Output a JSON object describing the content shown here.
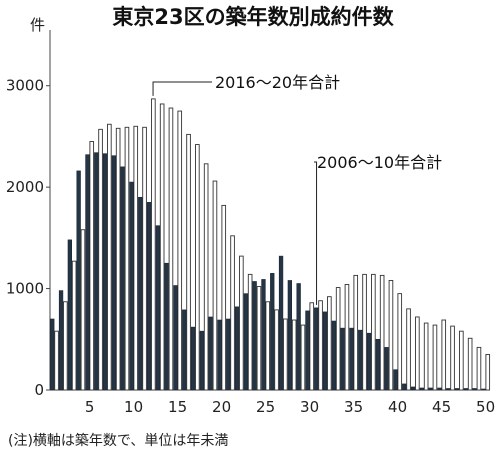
{
  "chart_data": {
    "type": "bar",
    "title": "東京23区の築年数別成約件数",
    "unit": "件",
    "note": "(注)横軸は築年数で、単位は年未満",
    "ylim": [
      0,
      3500
    ],
    "yticks": [
      0,
      1000,
      2000,
      3000
    ],
    "xticks": [
      5,
      10,
      15,
      20,
      25,
      30,
      35,
      40,
      45,
      50
    ],
    "categories": [
      1,
      2,
      3,
      4,
      5,
      6,
      7,
      8,
      9,
      10,
      11,
      12,
      13,
      14,
      15,
      16,
      17,
      18,
      19,
      20,
      21,
      22,
      23,
      24,
      25,
      26,
      27,
      28,
      29,
      30,
      31,
      32,
      33,
      34,
      35,
      36,
      37,
      38,
      39,
      40,
      41,
      42,
      43,
      44,
      45,
      46,
      47,
      48,
      49,
      50
    ],
    "grid": false,
    "legend": "annotations",
    "series": [
      {
        "name": "2006～10年合計",
        "color": "#253545",
        "values": [
          700,
          980,
          1480,
          2160,
          2320,
          2340,
          2330,
          2310,
          2200,
          2050,
          1900,
          1850,
          1620,
          1250,
          1030,
          790,
          620,
          580,
          720,
          690,
          700,
          820,
          950,
          1070,
          1090,
          1150,
          1320,
          1080,
          1050,
          780,
          810,
          770,
          680,
          610,
          610,
          590,
          560,
          500,
          420,
          200,
          60,
          30,
          20,
          20,
          20,
          15,
          15,
          15,
          15,
          10
        ]
      },
      {
        "name": "2016～20年合計",
        "color": "#ffffff",
        "values": [
          580,
          870,
          1270,
          1580,
          2450,
          2570,
          2620,
          2580,
          2590,
          2600,
          2590,
          2870,
          2820,
          2780,
          2750,
          2520,
          2420,
          2230,
          2060,
          1820,
          1520,
          1320,
          1140,
          1020,
          870,
          790,
          700,
          690,
          640,
          860,
          880,
          920,
          1010,
          1040,
          1130,
          1140,
          1140,
          1130,
          1080,
          950,
          800,
          720,
          660,
          640,
          690,
          630,
          580,
          510,
          420,
          350
        ]
      }
    ],
    "annotations": [
      {
        "text": "2016～20年合計",
        "x": 12,
        "y": 2870,
        "series": 1
      },
      {
        "text": "2006～10年合計",
        "x": 31,
        "y": 810,
        "series": 0
      }
    ]
  }
}
